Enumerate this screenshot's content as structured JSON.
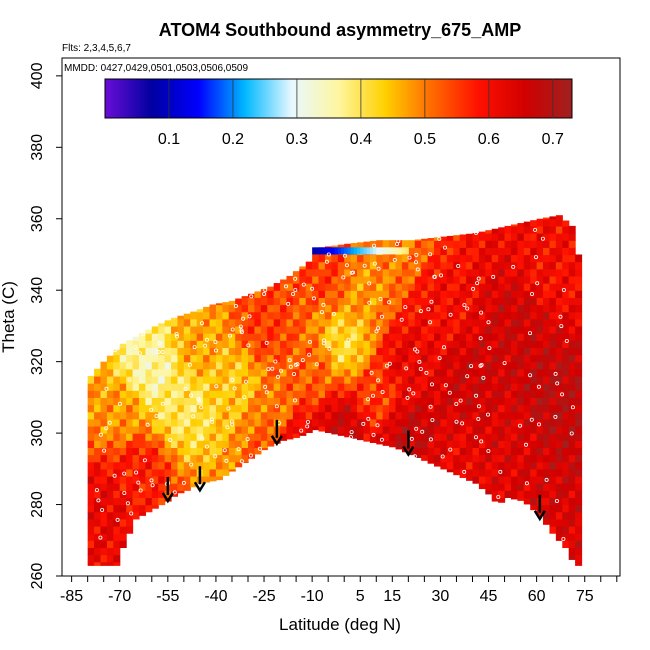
{
  "chart_data": {
    "type": "heatmap",
    "title": "ATOM4 Southbound asymmetry_675_AMP",
    "flights_note": "Flts: 2,3,4,5,6,7",
    "dates_note": "MMDD: 0427,0429,0501,0503,0506,0509",
    "xlabel": "Latitude (deg N)",
    "ylabel": "Theta (C)",
    "xlim": [
      -88,
      86
    ],
    "ylim": [
      260,
      405
    ],
    "x_tick_labels": [
      -85,
      -70,
      -55,
      -40,
      -25,
      -10,
      5,
      15,
      30,
      45,
      60,
      75
    ],
    "y_tick_labels": [
      260,
      280,
      300,
      320,
      340,
      360,
      380,
      400
    ],
    "colorbar": {
      "range": [
        0,
        0.73
      ],
      "tick_labels": [
        "0.1",
        "0.2",
        "0.3",
        "0.4",
        "0.5",
        "0.6",
        "0.7"
      ],
      "tick_values": [
        0.1,
        0.2,
        0.3,
        0.4,
        0.5,
        0.6,
        0.7
      ],
      "colors": [
        "#6a0dd6",
        "#0000a0",
        "#0000ff",
        "#00b8ff",
        "#e8f8ff",
        "#fff6a0",
        "#ffd000",
        "#ff6a00",
        "#ff1000",
        "#d00000",
        "#a02020"
      ]
    },
    "bottom_boundary": [
      [
        -72,
        263
      ],
      [
        -70,
        268
      ],
      [
        -66,
        276
      ],
      [
        -60,
        279
      ],
      [
        -56,
        281
      ],
      [
        -53,
        283
      ],
      [
        -50,
        284
      ],
      [
        -46,
        286
      ],
      [
        -40,
        287
      ],
      [
        -35,
        290
      ],
      [
        -30,
        293
      ],
      [
        -25,
        296
      ],
      [
        -20,
        298
      ],
      [
        -15,
        299
      ],
      [
        -10,
        301
      ],
      [
        -5,
        300
      ],
      [
        0,
        299
      ],
      [
        5,
        298
      ],
      [
        10,
        297
      ],
      [
        15,
        296
      ],
      [
        20,
        294
      ],
      [
        25,
        292
      ],
      [
        30,
        290
      ],
      [
        35,
        288
      ],
      [
        40,
        286
      ],
      [
        44,
        283
      ],
      [
        47,
        280
      ],
      [
        50,
        282
      ],
      [
        55,
        281
      ],
      [
        60,
        277
      ],
      [
        64,
        272
      ],
      [
        68,
        268
      ],
      [
        71,
        263
      ]
    ],
    "top_boundary": [
      [
        -80,
        316
      ],
      [
        -76,
        320
      ],
      [
        -70,
        325
      ],
      [
        -62,
        329
      ],
      [
        -55,
        332
      ],
      [
        -48,
        334
      ],
      [
        -42,
        336
      ],
      [
        -36,
        337
      ],
      [
        -30,
        339
      ],
      [
        -24,
        341
      ],
      [
        -18,
        344
      ],
      [
        -12,
        348
      ],
      [
        -8,
        352
      ],
      [
        0,
        353
      ],
      [
        10,
        354
      ],
      [
        20,
        354
      ],
      [
        30,
        355
      ],
      [
        40,
        356
      ],
      [
        50,
        358
      ],
      [
        60,
        360
      ],
      [
        66,
        361
      ],
      [
        70,
        358
      ],
      [
        72,
        350
      ],
      [
        73,
        335
      ],
      [
        74,
        300
      ],
      [
        74,
        285
      ],
      [
        72,
        265
      ]
    ],
    "value_anchors": [
      {
        "lat": -75,
        "theta": 280,
        "v": 0.62
      },
      {
        "lat": -65,
        "theta": 290,
        "v": 0.58
      },
      {
        "lat": -70,
        "theta": 305,
        "v": 0.48
      },
      {
        "lat": -60,
        "theta": 318,
        "v": 0.36
      },
      {
        "lat": -50,
        "theta": 308,
        "v": 0.4
      },
      {
        "lat": -45,
        "theta": 325,
        "v": 0.47
      },
      {
        "lat": -35,
        "theta": 315,
        "v": 0.44
      },
      {
        "lat": -25,
        "theta": 330,
        "v": 0.55
      },
      {
        "lat": -20,
        "theta": 305,
        "v": 0.5
      },
      {
        "lat": -10,
        "theta": 318,
        "v": 0.52
      },
      {
        "lat": 0,
        "theta": 325,
        "v": 0.42
      },
      {
        "lat": 5,
        "theta": 340,
        "v": 0.48
      },
      {
        "lat": 10,
        "theta": 310,
        "v": 0.55
      },
      {
        "lat": 20,
        "theta": 320,
        "v": 0.62
      },
      {
        "lat": 20,
        "theta": 300,
        "v": 0.67
      },
      {
        "lat": 30,
        "theta": 335,
        "v": 0.6
      },
      {
        "lat": 40,
        "theta": 315,
        "v": 0.66
      },
      {
        "lat": 50,
        "theta": 300,
        "v": 0.64
      },
      {
        "lat": 55,
        "theta": 330,
        "v": 0.66
      },
      {
        "lat": 65,
        "theta": 310,
        "v": 0.68
      },
      {
        "lat": 65,
        "theta": 345,
        "v": 0.6
      },
      {
        "lat": -5,
        "theta": 345,
        "v": 0.55
      },
      {
        "lat": 15,
        "theta": 350,
        "v": 0.5
      },
      {
        "lat": -15,
        "theta": 300,
        "v": 0.62
      },
      {
        "lat": 0,
        "theta": 302,
        "v": 0.66
      },
      {
        "lat": 35,
        "theta": 290,
        "v": 0.62
      }
    ],
    "blue_strip": {
      "lat_start": -10,
      "lat_end": 20,
      "theta_low": 350,
      "theta_high": 352,
      "v_start": 0.08,
      "v_end": 0.4
    },
    "arrows_lat": [
      -55,
      -45,
      -21,
      20,
      61
    ],
    "arrow_tip_theta": [
      281,
      284,
      297,
      294,
      276
    ]
  }
}
